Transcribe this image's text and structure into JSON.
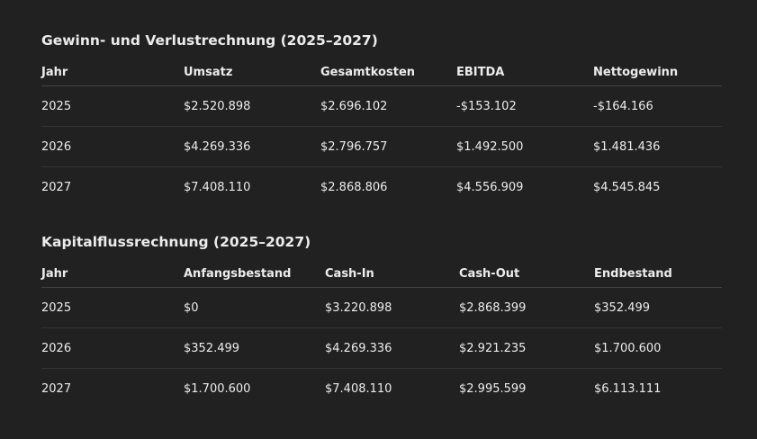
{
  "income_statement": {
    "title": "Gewinn- und Verlustrechnung (2025–2027)",
    "headers": [
      "Jahr",
      "Umsatz",
      "Gesamtkosten",
      "EBITDA",
      "Nettogewinn"
    ],
    "rows": [
      [
        "2025",
        "$2.520.898",
        "$2.696.102",
        "-$153.102",
        "-$164.166"
      ],
      [
        "2026",
        "$4.269.336",
        "$2.796.757",
        "$1.492.500",
        "$1.481.436"
      ],
      [
        "2027",
        "$7.408.110",
        "$2.868.806",
        "$4.556.909",
        "$4.545.845"
      ]
    ]
  },
  "cash_flow": {
    "title": "Kapitalflussrechnung (2025–2027)",
    "headers": [
      "Jahr",
      "Anfangsbestand",
      "Cash-In",
      "Cash-Out",
      "Endbestand"
    ],
    "rows": [
      [
        "2025",
        "$0",
        "$3.220.898",
        "$2.868.399",
        "$352.499"
      ],
      [
        "2026",
        "$352.499",
        "$4.269.336",
        "$2.921.235",
        "$1.700.600"
      ],
      [
        "2027",
        "$1.700.600",
        "$7.408.110",
        "$2.995.599",
        "$6.113.111"
      ]
    ]
  }
}
